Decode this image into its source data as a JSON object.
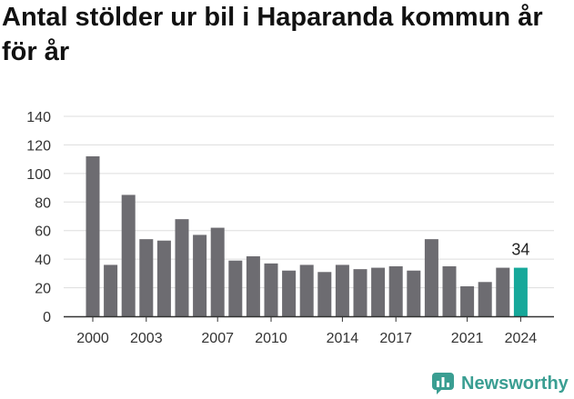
{
  "title": "Antal stölder ur bil i Haparanda kommun år för år",
  "brand": {
    "name": "Newsworthy",
    "icon": "newsworthy-logo-icon",
    "color": "#3a9e92"
  },
  "colors": {
    "bar": "#6d6c71",
    "highlight": "#16a89a",
    "grid": "#dddddd",
    "axis": "#333333"
  },
  "chart_data": {
    "type": "bar",
    "title": "Antal stölder ur bil i Haparanda kommun år för år",
    "xlabel": "",
    "ylabel": "",
    "categories": [
      2000,
      2001,
      2002,
      2003,
      2004,
      2005,
      2006,
      2007,
      2008,
      2009,
      2010,
      2011,
      2012,
      2013,
      2014,
      2015,
      2016,
      2017,
      2018,
      2019,
      2020,
      2021,
      2022,
      2023,
      2024
    ],
    "values": [
      112,
      36,
      85,
      54,
      53,
      68,
      57,
      62,
      39,
      42,
      37,
      32,
      36,
      31,
      36,
      33,
      34,
      35,
      32,
      54,
      35,
      21,
      24,
      34,
      34
    ],
    "ylim": [
      0,
      140
    ],
    "yticks": [
      0,
      20,
      40,
      60,
      80,
      100,
      120,
      140
    ],
    "xticks": [
      2000,
      2003,
      2007,
      2010,
      2014,
      2017,
      2021,
      2024
    ],
    "highlight": {
      "category": 2024,
      "label": "34"
    },
    "grid": true
  }
}
